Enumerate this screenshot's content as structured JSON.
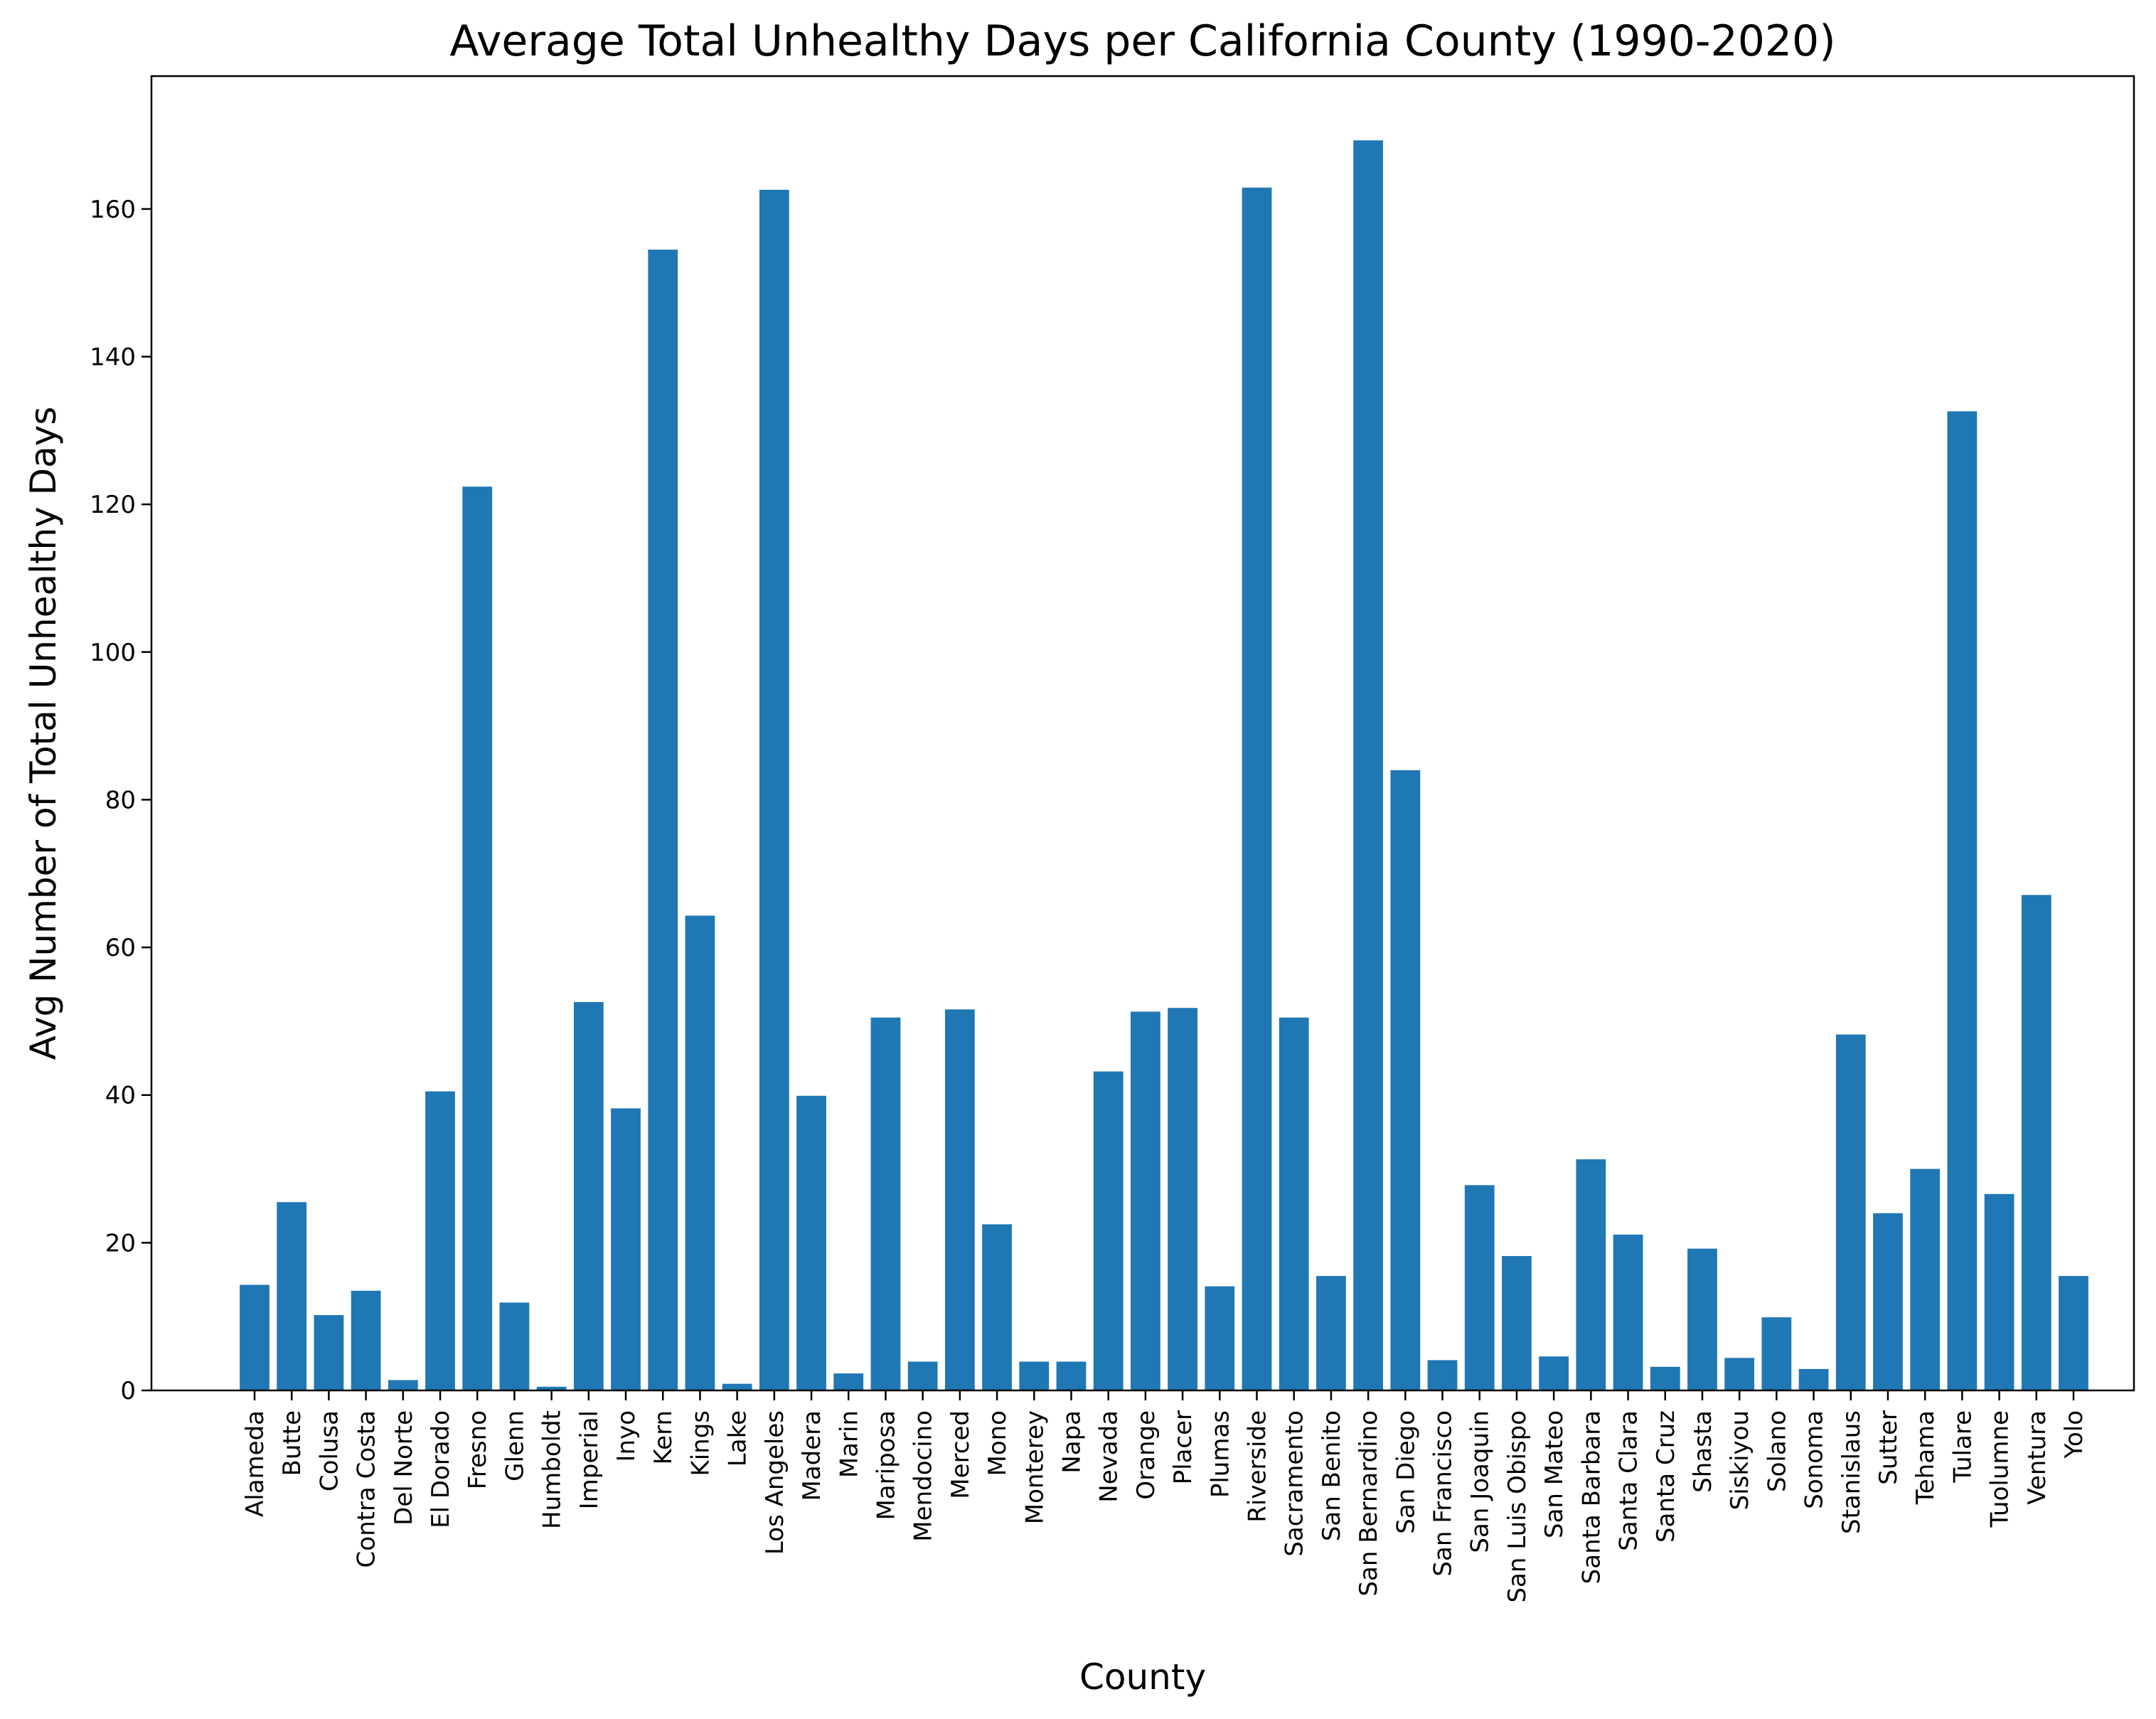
{
  "chart_data": {
    "type": "bar",
    "title": "Average Total Unhealthy Days per California County (1990-2020)",
    "xlabel": "County",
    "ylabel": "Avg Number of Total Unhealthy Days",
    "ylim": [
      0,
      178
    ],
    "yticks": [
      0,
      20,
      40,
      60,
      80,
      100,
      120,
      140,
      160
    ],
    "grid": false,
    "bar_color": "#1f77b4",
    "categories": [
      "Alameda",
      "Butte",
      "Colusa",
      "Contra Costa",
      "Del Norte",
      "El Dorado",
      "Fresno",
      "Glenn",
      "Humboldt",
      "Imperial",
      "Inyo",
      "Kern",
      "Kings",
      "Lake",
      "Los Angeles",
      "Madera",
      "Marin",
      "Mariposa",
      "Mendocino",
      "Merced",
      "Mono",
      "Monterey",
      "Napa",
      "Nevada",
      "Orange",
      "Placer",
      "Plumas",
      "Riverside",
      "Sacramento",
      "San Benito",
      "San Bernardino",
      "San Diego",
      "San Francisco",
      "San Joaquin",
      "San Luis Obispo",
      "San Mateo",
      "Santa Barbara",
      "Santa Clara",
      "Santa Cruz",
      "Shasta",
      "Siskiyou",
      "Solano",
      "Sonoma",
      "Stanislaus",
      "Sutter",
      "Tehama",
      "Tulare",
      "Tuolumne",
      "Ventura",
      "Yolo"
    ],
    "values": [
      14.3,
      25.5,
      10.2,
      13.5,
      1.4,
      40.5,
      122.4,
      11.9,
      0.5,
      52.6,
      38.2,
      154.5,
      64.3,
      0.9,
      162.6,
      39.9,
      2.3,
      50.5,
      3.9,
      51.6,
      22.5,
      3.9,
      3.9,
      43.2,
      51.3,
      51.8,
      14.1,
      162.9,
      50.5,
      15.5,
      169.3,
      84.0,
      4.1,
      27.8,
      18.2,
      4.6,
      31.3,
      21.1,
      3.2,
      19.2,
      4.4,
      9.9,
      2.9,
      48.2,
      24.0,
      30.0,
      132.6,
      26.6,
      67.1,
      15.5
    ]
  }
}
